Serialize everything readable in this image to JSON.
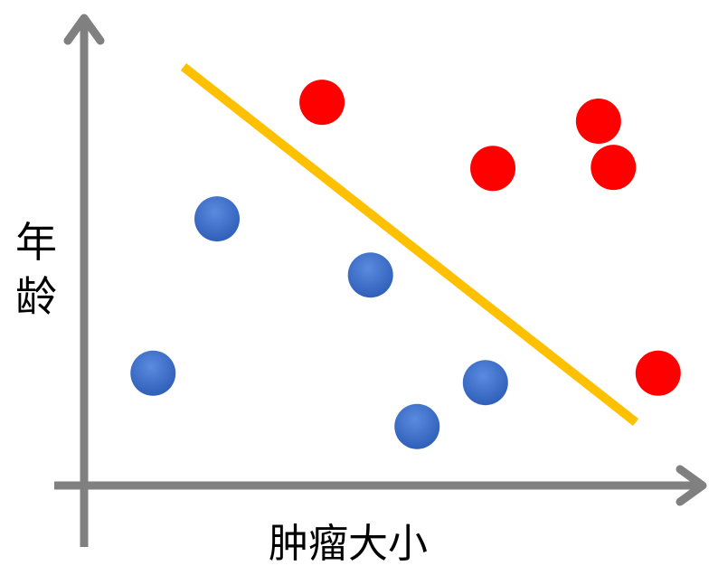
{
  "chart_data": {
    "type": "scatter",
    "title": "",
    "xlabel": "肿瘤大小",
    "ylabel": "年龄",
    "xlim": [
      0,
      100
    ],
    "ylim": [
      0,
      100
    ],
    "ticks": false,
    "grid": false,
    "series": [
      {
        "color": "#3a6bc8",
        "points": [
          [
            11.1,
            23.8
          ],
          [
            21.4,
            56.5
          ],
          [
            46.1,
            44.6
          ],
          [
            53.6,
            12.5
          ],
          [
            64.6,
            21.8
          ]
        ]
      },
      {
        "color": "#ff0000",
        "points": [
          [
            38.3,
            81.2
          ],
          [
            65.8,
            67.2
          ],
          [
            82.8,
            77.2
          ],
          [
            85.2,
            67.4
          ],
          [
            92.4,
            23.8
          ]
        ]
      }
    ],
    "decision_line": {
      "color": "#ffc000",
      "from": [
        16.0,
        88.7
      ],
      "to": [
        88.8,
        13.4
      ]
    },
    "axis_color": "#808080"
  }
}
